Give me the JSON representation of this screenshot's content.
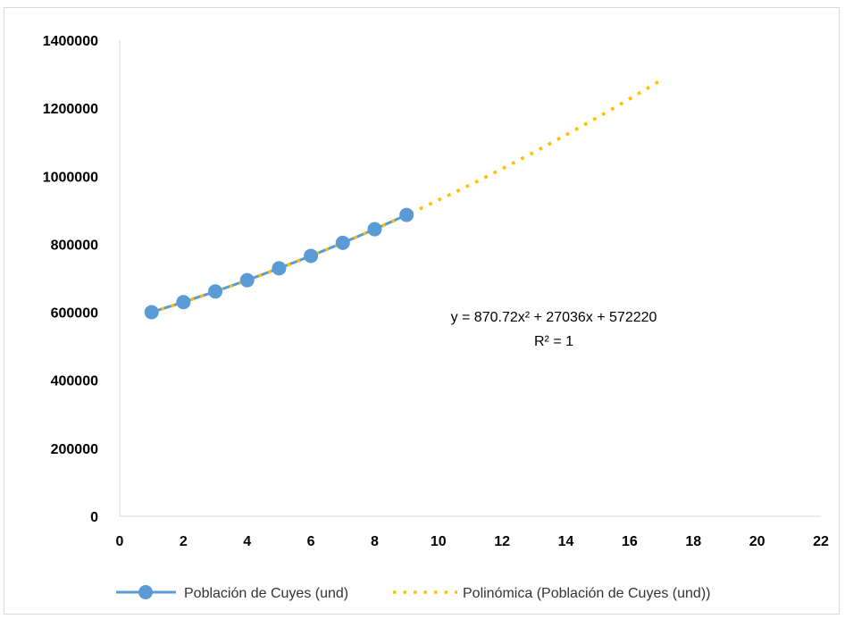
{
  "chart_data": {
    "type": "scatter",
    "x_ticks": [
      "0",
      "2",
      "4",
      "6",
      "8",
      "10",
      "12",
      "14",
      "16",
      "18",
      "20",
      "22"
    ],
    "y_ticks": [
      "0",
      "200000",
      "400000",
      "600000",
      "800000",
      "1000000",
      "1200000",
      "1400000"
    ],
    "xlim": [
      0,
      22
    ],
    "ylim": [
      0,
      1400000
    ],
    "grid": false,
    "legend_position": "bottom",
    "series": [
      {
        "name": "Población de Cuyes (und)",
        "color": "#5b9bd5",
        "marker": "circle",
        "x": [
          1,
          2,
          3,
          4,
          5,
          6,
          7,
          8,
          9
        ],
        "y": [
          600127,
          629776,
          661167,
          694299,
          729173,
          765789,
          804147,
          844247,
          886088
        ]
      }
    ],
    "trendline": {
      "name": "Polinómica (Población de Cuyes (und))",
      "color": "#ffc000",
      "type": "polynomial",
      "coefficients": [
        870.72,
        27036,
        572220
      ],
      "x_range": [
        1,
        17
      ],
      "equation": "y = 870.72x² + 27036x + 572220",
      "r_squared": "R² = 1"
    }
  }
}
